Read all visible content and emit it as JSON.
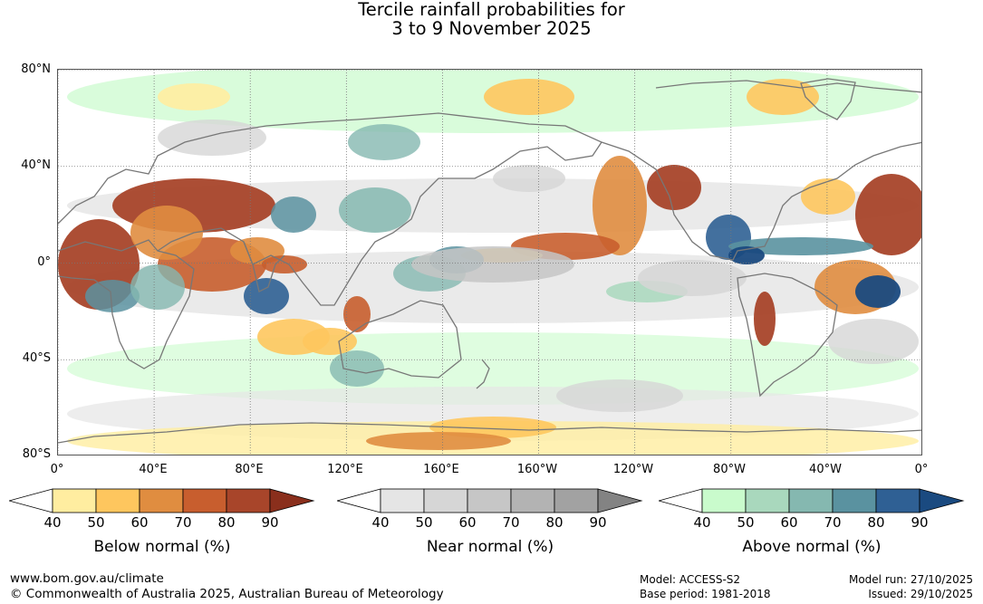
{
  "title": {
    "line1": "Tercile rainfall probabilities for",
    "line2": "3 to 9 November 2025"
  },
  "map": {
    "lat_labels": [
      "80°N",
      "40°N",
      "0°",
      "40°S",
      "80°S"
    ],
    "lon_labels": [
      "0°",
      "40°E",
      "80°E",
      "120°E",
      "160°E",
      "160°W",
      "120°W",
      "80°W",
      "40°W",
      "0°"
    ],
    "land_outline_color": "#777777",
    "grid_color": "#777777"
  },
  "colorbars": [
    {
      "title": "Below normal (%)",
      "ticks": [
        "40",
        "50",
        "60",
        "70",
        "80",
        "90"
      ],
      "colors": [
        "#ffffff",
        "#ffeda0",
        "#fec65e",
        "#e08d40",
        "#c85e2e",
        "#a8452a",
        "#8a2f1c"
      ]
    },
    {
      "title": "Near normal (%)",
      "ticks": [
        "40",
        "50",
        "60",
        "70",
        "80",
        "90"
      ],
      "colors": [
        "#ffffff",
        "#e5e5e5",
        "#d6d6d6",
        "#c6c6c6",
        "#b3b3b3",
        "#a2a2a2",
        "#838383"
      ]
    },
    {
      "title": "Above normal (%)",
      "ticks": [
        "40",
        "50",
        "60",
        "70",
        "80",
        "90"
      ],
      "colors": [
        "#ffffff",
        "#c9fbcc",
        "#a9d8bd",
        "#85b8b0",
        "#5a92a0",
        "#2f6094",
        "#1a4a80"
      ]
    }
  ],
  "footer": {
    "url": "www.bom.gov.au/climate",
    "copyright": "© Commonwealth of Australia 2025, Australian Bureau of Meteorology",
    "model": "Model: ACCESS-S2",
    "base_period": "Base period: 1981-2018",
    "model_run": "Model run: 27/10/2025",
    "issued": "Issued: 29/10/2025"
  }
}
